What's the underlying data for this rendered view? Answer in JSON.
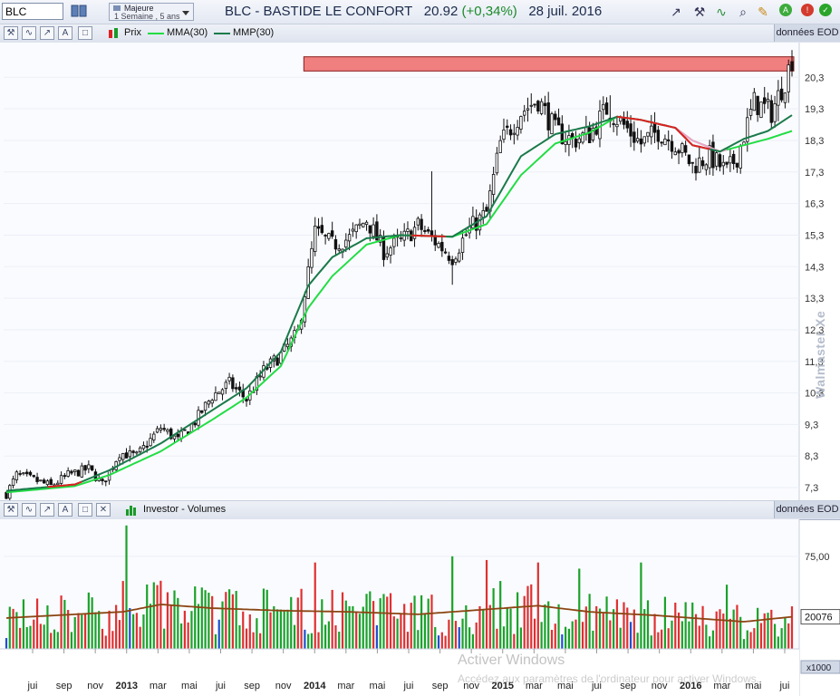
{
  "toolbar": {
    "symbol_value": "BLC",
    "period_line1": "Majeure",
    "period_line2": "1 Semaine , 5 ans",
    "title_main": "BLC - BASTIDE LE CONFORT",
    "title_price": "20.92",
    "title_change": "(+0,34%)",
    "title_date": "28 juil. 2016",
    "icons": [
      "trendline-icon",
      "tools-icon",
      "indicator-icon",
      "magnify-icon",
      "pencil-icon",
      "alert-green-icon",
      "alert-red-icon"
    ]
  },
  "price_panel": {
    "legend": {
      "price": "Prix",
      "mma": "MMA(30)",
      "mmp": "MMP(30)"
    },
    "eod_label": "données EOD",
    "watermark": "Walmaster Xe",
    "colors": {
      "mma": "#22dd44",
      "mmp": "#1a7a4a",
      "up": "#111111",
      "resistance_fill": "#f07f7f"
    }
  },
  "volume_panel": {
    "title": "Investor - Volumes",
    "eod_label": "données EOD",
    "current_value": "20076",
    "multiplier": "x1000"
  },
  "overlay": {
    "activate_line1": "Activer Windows",
    "activate_line2": "Accédez aux paramètres de l'ordinateur pour activer Windows."
  },
  "chart_data": {
    "type": "candlestick",
    "x_axis_labels": [
      "jui",
      "sep",
      "nov",
      "2013",
      "mar",
      "mai",
      "jui",
      "sep",
      "nov",
      "2014",
      "mar",
      "mai",
      "jui",
      "sep",
      "nov",
      "2015",
      "mar",
      "mai",
      "jui",
      "sep",
      "nov",
      "2016",
      "mar",
      "mai",
      "jui"
    ],
    "y_axis_labels": [
      "7,3",
      "8,3",
      "9,3",
      "10,3",
      "11,3",
      "12,3",
      "13,3",
      "14,3",
      "15,3",
      "16,3",
      "17,3",
      "18,3",
      "19,3",
      "20,3"
    ],
    "ylim": [
      6.9,
      21.4
    ],
    "price_anchors": [
      [
        0,
        7.1
      ],
      [
        3,
        7.7
      ],
      [
        8,
        7.55
      ],
      [
        13,
        7.35
      ],
      [
        18,
        7.7
      ],
      [
        24,
        7.9
      ],
      [
        28,
        7.4
      ],
      [
        33,
        8.4
      ],
      [
        38,
        8.3
      ],
      [
        45,
        9.2
      ],
      [
        50,
        8.8
      ],
      [
        55,
        9.4
      ],
      [
        60,
        10.2
      ],
      [
        65,
        10.6
      ],
      [
        70,
        10.1
      ],
      [
        75,
        11.0
      ],
      [
        80,
        11.5
      ],
      [
        85,
        12.2
      ],
      [
        90,
        15.4
      ],
      [
        95,
        15.0
      ],
      [
        100,
        15.2
      ],
      [
        105,
        15.8
      ],
      [
        110,
        14.8
      ],
      [
        115,
        15.1
      ],
      [
        120,
        15.6
      ],
      [
        125,
        15.1
      ],
      [
        130,
        14.6
      ],
      [
        135,
        15.5
      ],
      [
        140,
        16.0
      ],
      [
        144,
        18.2
      ],
      [
        150,
        19.2
      ],
      [
        155,
        19.6
      ],
      [
        160,
        18.6
      ],
      [
        165,
        18.3
      ],
      [
        170,
        18.5
      ],
      [
        175,
        19.3
      ],
      [
        178,
        19.0
      ],
      [
        185,
        18.2
      ],
      [
        190,
        18.6
      ],
      [
        195,
        18.2
      ],
      [
        200,
        17.5
      ],
      [
        205,
        17.8
      ],
      [
        210,
        17.3
      ],
      [
        213,
        17.8
      ],
      [
        218,
        19.5
      ],
      [
        223,
        19.2
      ],
      [
        227,
        20.2
      ],
      [
        229,
        20.9
      ]
    ],
    "mma30_anchors": [
      [
        0,
        7.15
      ],
      [
        20,
        7.35
      ],
      [
        30,
        7.7
      ],
      [
        45,
        8.45
      ],
      [
        60,
        9.45
      ],
      [
        70,
        10.15
      ],
      [
        80,
        11.15
      ],
      [
        88,
        13.0
      ],
      [
        95,
        14.0
      ],
      [
        105,
        15.0
      ],
      [
        115,
        15.3
      ],
      [
        130,
        15.25
      ],
      [
        140,
        15.65
      ],
      [
        150,
        17.2
      ],
      [
        160,
        18.2
      ],
      [
        170,
        18.55
      ],
      [
        178,
        19.05
      ],
      [
        185,
        18.95
      ],
      [
        195,
        18.7
      ],
      [
        200,
        18.3
      ],
      [
        208,
        17.95
      ],
      [
        215,
        18.15
      ],
      [
        222,
        18.35
      ],
      [
        229,
        18.6
      ]
    ],
    "mmp30_anchors": [
      [
        0,
        7.2
      ],
      [
        20,
        7.4
      ],
      [
        30,
        7.85
      ],
      [
        45,
        8.7
      ],
      [
        60,
        9.75
      ],
      [
        70,
        10.45
      ],
      [
        80,
        11.6
      ],
      [
        88,
        13.7
      ],
      [
        95,
        14.6
      ],
      [
        105,
        15.2
      ],
      [
        115,
        15.3
      ],
      [
        130,
        15.25
      ],
      [
        140,
        15.9
      ],
      [
        150,
        17.8
      ],
      [
        160,
        18.5
      ],
      [
        170,
        18.75
      ],
      [
        178,
        19.05
      ],
      [
        185,
        18.95
      ],
      [
        195,
        18.7
      ],
      [
        200,
        18.15
      ],
      [
        208,
        17.95
      ],
      [
        215,
        18.35
      ],
      [
        222,
        18.6
      ],
      [
        229,
        19.1
      ]
    ],
    "resistance_band": {
      "y_low": 20.5,
      "y_high": 20.95,
      "start_week": 92,
      "end_week": 229
    },
    "volume": {
      "ylim": [
        0,
        105
      ],
      "tick_labels": [
        "75,00"
      ],
      "spikes": [
        [
          34,
          55
        ],
        [
          35,
          100
        ],
        [
          90,
          70
        ],
        [
          130,
          75
        ],
        [
          140,
          72
        ],
        [
          144,
          55
        ],
        [
          155,
          70
        ],
        [
          167,
          65
        ],
        [
          185,
          70
        ],
        [
          210,
          52
        ]
      ],
      "avg_anchors": [
        [
          0,
          25
        ],
        [
          20,
          28
        ],
        [
          34,
          30
        ],
        [
          45,
          36
        ],
        [
          60,
          33
        ],
        [
          80,
          31
        ],
        [
          100,
          30
        ],
        [
          120,
          28
        ],
        [
          140,
          32
        ],
        [
          155,
          35
        ],
        [
          170,
          30
        ],
        [
          190,
          27
        ],
        [
          205,
          24
        ],
        [
          215,
          22
        ],
        [
          229,
          26
        ]
      ]
    }
  }
}
